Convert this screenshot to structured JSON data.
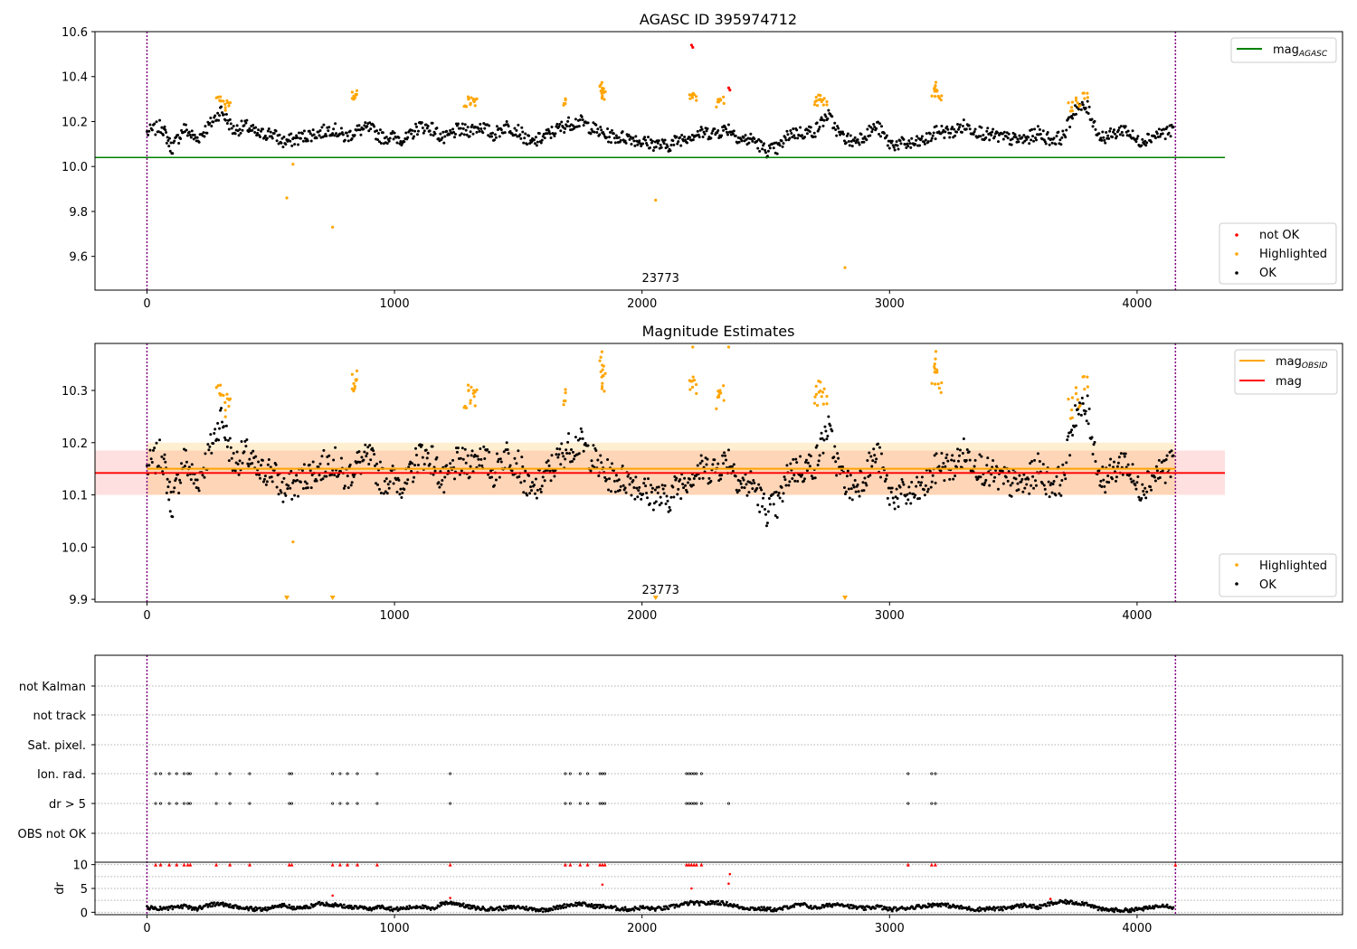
{
  "chart_data": [
    {
      "panel": "top",
      "type": "scatter",
      "title": "AGASC ID 395974712",
      "xlim": [
        -210,
        4830
      ],
      "ylim": [
        9.45,
        10.6
      ],
      "xticks": [
        0,
        1000,
        2000,
        3000,
        4000
      ],
      "yticks": [
        9.6,
        9.8,
        10.0,
        10.2,
        10.4,
        10.6
      ],
      "ytick_labels": [
        "9.6",
        "9.8",
        "10.0",
        "10.2",
        "10.4",
        "10.6"
      ],
      "obsid_label": "23773",
      "obsid_label_x": 2075,
      "vlines": [
        0,
        4155
      ],
      "hline": {
        "name_main": "mag",
        "name_sub": "AGASC",
        "y": 10.04,
        "x_range": [
          -210,
          4355
        ],
        "color": "#008000"
      },
      "legend_upper": [
        {
          "label_main": "mag",
          "label_sub": "AGASC",
          "color": "#008000"
        }
      ],
      "legend_lower": [
        {
          "label": "not OK",
          "color": "#ff0000"
        },
        {
          "label": "Highlighted",
          "color": "#ffa500"
        },
        {
          "label": "OK",
          "color": "#000000"
        }
      ],
      "ok_series": {
        "name": "OK",
        "color": "#000000",
        "x": [
          0,
          60,
          100,
          150,
          200,
          250,
          300,
          350,
          400,
          450,
          500,
          550,
          600,
          650,
          700,
          750,
          800,
          850,
          900,
          950,
          1000,
          1050,
          1100,
          1150,
          1200,
          1250,
          1300,
          1350,
          1400,
          1450,
          1500,
          1550,
          1600,
          1650,
          1700,
          1750,
          1800,
          1850,
          1900,
          1950,
          2000,
          2050,
          2100,
          2150,
          2200,
          2250,
          2300,
          2350,
          2400,
          2450,
          2500,
          2550,
          2600,
          2650,
          2700,
          2750,
          2800,
          2850,
          2900,
          2950,
          3000,
          3050,
          3100,
          3150,
          3200,
          3250,
          3300,
          3350,
          3400,
          3450,
          3500,
          3550,
          3600,
          3650,
          3700,
          3750,
          3800,
          3850,
          3900,
          3950,
          4000,
          4050,
          4100,
          4150
        ],
        "y": [
          10.15,
          10.18,
          10.08,
          10.17,
          10.12,
          10.18,
          10.25,
          10.16,
          10.18,
          10.14,
          10.15,
          10.11,
          10.12,
          10.14,
          10.15,
          10.17,
          10.13,
          10.16,
          10.17,
          10.13,
          10.13,
          10.12,
          10.18,
          10.17,
          10.12,
          10.16,
          10.16,
          10.18,
          10.14,
          10.18,
          10.16,
          10.1,
          10.13,
          10.16,
          10.19,
          10.2,
          10.17,
          10.14,
          10.13,
          10.13,
          10.11,
          10.1,
          10.09,
          10.12,
          10.14,
          10.15,
          10.15,
          10.17,
          10.12,
          10.12,
          10.07,
          10.08,
          10.15,
          10.15,
          10.16,
          10.23,
          10.14,
          10.11,
          10.14,
          10.18,
          10.1,
          10.1,
          10.1,
          10.12,
          10.16,
          10.15,
          10.18,
          10.16,
          10.14,
          10.13,
          10.12,
          10.12,
          10.15,
          10.12,
          10.13,
          10.26,
          10.26,
          10.13,
          10.14,
          10.17,
          10.11,
          10.13,
          10.15,
          10.16
        ]
      },
      "highlighted_series": {
        "name": "Highlighted",
        "color": "#ffa500",
        "x": [
          290,
          310,
          330,
          840,
          845,
          1290,
          1310,
          1330,
          1680,
          1830,
          1840,
          1850,
          2200,
          2210,
          2310,
          2320,
          2700,
          2720,
          2740,
          3180,
          3190,
          3200,
          3730,
          3760,
          3790,
          565,
          590,
          750,
          2055,
          2820
        ],
        "y": [
          10.3,
          10.27,
          10.28,
          10.32,
          10.33,
          10.29,
          10.3,
          10.28,
          10.29,
          10.35,
          10.31,
          10.33,
          10.32,
          10.31,
          10.28,
          10.3,
          10.29,
          10.31,
          10.28,
          10.33,
          10.35,
          10.32,
          10.27,
          10.29,
          10.32,
          9.86,
          10.01,
          9.73,
          9.85,
          9.55
        ]
      },
      "not_ok_series": {
        "name": "not OK",
        "color": "#ff0000",
        "x": [
          2200,
          2205,
          2350,
          2355
        ],
        "y": [
          10.54,
          10.53,
          10.35,
          10.34
        ]
      }
    },
    {
      "panel": "middle",
      "type": "scatter",
      "title": "Magnitude Estimates",
      "xlim": [
        -210,
        4830
      ],
      "ylim": [
        9.895,
        10.39
      ],
      "xticks": [
        0,
        1000,
        2000,
        3000,
        4000
      ],
      "yticks": [
        9.9,
        10.0,
        10.1,
        10.2,
        10.3
      ],
      "ytick_labels": [
        "9.9",
        "10.0",
        "10.1",
        "10.2",
        "10.3"
      ],
      "obsid_label": "23773",
      "obsid_label_x": 2075,
      "vlines": [
        0,
        4155
      ],
      "mag_obsid": {
        "name_main": "mag",
        "name_sub": "OBSID",
        "y": 10.15,
        "band": [
          10.1,
          10.2
        ],
        "x_range": [
          0,
          4155
        ],
        "color": "#ffa500"
      },
      "mag": {
        "name": "mag",
        "y": 10.142,
        "band": [
          10.1,
          10.185
        ],
        "x_range": [
          -210,
          4355
        ],
        "color": "#ff0000"
      },
      "legend_upper": [
        {
          "label_main": "mag",
          "label_sub": "OBSID",
          "color": "#ffa500"
        },
        {
          "label_main": "mag",
          "label_sub": "",
          "color": "#ff0000"
        }
      ],
      "legend_lower": [
        {
          "label": "Highlighted",
          "color": "#ffa500"
        },
        {
          "label": "OK",
          "color": "#000000"
        }
      ],
      "ok_series": {
        "name": "OK",
        "color": "#000000",
        "x": [
          0,
          60,
          100,
          150,
          200,
          250,
          300,
          350,
          400,
          450,
          500,
          550,
          600,
          650,
          700,
          750,
          800,
          850,
          900,
          950,
          1000,
          1050,
          1100,
          1150,
          1200,
          1250,
          1300,
          1350,
          1400,
          1450,
          1500,
          1550,
          1600,
          1650,
          1700,
          1750,
          1800,
          1850,
          1900,
          1950,
          2000,
          2050,
          2100,
          2150,
          2200,
          2250,
          2300,
          2350,
          2400,
          2450,
          2500,
          2550,
          2600,
          2650,
          2700,
          2750,
          2800,
          2850,
          2900,
          2950,
          3000,
          3050,
          3100,
          3150,
          3200,
          3250,
          3300,
          3350,
          3400,
          3450,
          3500,
          3550,
          3600,
          3650,
          3700,
          3750,
          3800,
          3850,
          3900,
          3950,
          4000,
          4050,
          4100,
          4150
        ],
        "y": [
          10.15,
          10.18,
          10.08,
          10.17,
          10.12,
          10.18,
          10.25,
          10.16,
          10.18,
          10.14,
          10.15,
          10.11,
          10.12,
          10.14,
          10.15,
          10.17,
          10.13,
          10.16,
          10.17,
          10.13,
          10.13,
          10.12,
          10.18,
          10.17,
          10.12,
          10.16,
          10.16,
          10.18,
          10.14,
          10.18,
          10.16,
          10.1,
          10.13,
          10.16,
          10.19,
          10.2,
          10.17,
          10.14,
          10.13,
          10.13,
          10.11,
          10.1,
          10.09,
          10.12,
          10.14,
          10.15,
          10.15,
          10.17,
          10.12,
          10.12,
          10.07,
          10.08,
          10.15,
          10.15,
          10.16,
          10.23,
          10.14,
          10.11,
          10.14,
          10.18,
          10.1,
          10.1,
          10.1,
          10.12,
          10.16,
          10.15,
          10.18,
          10.16,
          10.14,
          10.13,
          10.12,
          10.12,
          10.15,
          10.12,
          10.13,
          10.26,
          10.26,
          10.13,
          10.14,
          10.17,
          10.11,
          10.13,
          10.15,
          10.16
        ]
      },
      "highlighted_series": {
        "name": "Highlighted",
        "color": "#ffa500",
        "x": [
          290,
          310,
          330,
          840,
          845,
          1290,
          1310,
          1330,
          1680,
          1830,
          1840,
          1850,
          2200,
          2210,
          2310,
          2320,
          2700,
          2720,
          2740,
          3180,
          3190,
          3200,
          3730,
          3760,
          3790,
          590
        ],
        "y": [
          10.3,
          10.27,
          10.28,
          10.32,
          10.33,
          10.29,
          10.3,
          10.28,
          10.29,
          10.35,
          10.31,
          10.33,
          10.32,
          10.31,
          10.28,
          10.3,
          10.29,
          10.31,
          10.28,
          10.33,
          10.35,
          10.32,
          10.27,
          10.29,
          10.32,
          10.01
        ]
      },
      "below_range_markers": {
        "color": "#ffa500",
        "x": [
          565,
          750,
          2055,
          2820
        ]
      },
      "above_range_markers": {
        "color": "#ffa500",
        "x": [
          2205,
          2350
        ]
      }
    },
    {
      "panel": "bottom",
      "type": "scatter",
      "xlim": [
        -210,
        4830
      ],
      "xticks": [
        0,
        1000,
        2000,
        3000,
        4000
      ],
      "vlines": [
        0,
        4155
      ],
      "flag_rows": [
        "not Kalman",
        "not track",
        "Sat. pixel.",
        "Ion. rad.",
        "dr > 5",
        "OBS not OK"
      ],
      "flag_points": {
        "Ion. rad.": [
          35,
          55,
          90,
          120,
          150,
          165,
          175,
          280,
          335,
          415,
          575,
          585,
          750,
          780,
          810,
          850,
          930,
          1225,
          1690,
          1710,
          1750,
          1780,
          1830,
          1840,
          1850,
          2180,
          2190,
          2200,
          2210,
          2220,
          2240,
          3075,
          3170,
          3185
        ],
        "dr > 5": [
          35,
          55,
          90,
          120,
          150,
          165,
          175,
          280,
          335,
          415,
          575,
          585,
          750,
          780,
          810,
          850,
          930,
          1225,
          1690,
          1710,
          1750,
          1780,
          1830,
          1840,
          1850,
          2180,
          2190,
          2200,
          2210,
          2220,
          2240,
          2350,
          3075,
          3170,
          3185
        ]
      },
      "dr_axis": {
        "ylabel": "dr",
        "ylim": [
          -0.5,
          10.5
        ],
        "yticks": [
          0,
          5,
          10
        ],
        "ytick_labels": [
          "0",
          "5",
          "10"
        ],
        "clip_y": 10
      },
      "dr_series": {
        "color": "#000000",
        "x": [
          0,
          50,
          100,
          150,
          200,
          250,
          300,
          350,
          400,
          450,
          500,
          550,
          600,
          650,
          700,
          750,
          800,
          850,
          900,
          950,
          1000,
          1050,
          1100,
          1150,
          1200,
          1250,
          1300,
          1350,
          1400,
          1450,
          1500,
          1550,
          1600,
          1650,
          1700,
          1750,
          1800,
          1850,
          1900,
          1950,
          2000,
          2050,
          2100,
          2150,
          2200,
          2250,
          2300,
          2350,
          2400,
          2450,
          2500,
          2550,
          2600,
          2650,
          2700,
          2750,
          2800,
          2850,
          2900,
          2950,
          3000,
          3050,
          3100,
          3150,
          3200,
          3250,
          3300,
          3350,
          3400,
          3450,
          3500,
          3550,
          3600,
          3650,
          3700,
          3750,
          3800,
          3850,
          3900,
          3950,
          4000,
          4050,
          4100,
          4150
        ],
        "y": [
          1.0,
          0.8,
          0.9,
          1.2,
          0.7,
          1.6,
          1.8,
          1.1,
          0.8,
          0.6,
          0.9,
          1.5,
          0.8,
          1.1,
          1.9,
          1.6,
          1.2,
          1.0,
          0.7,
          1.2,
          0.6,
          0.9,
          1.3,
          0.6,
          2.0,
          1.9,
          1.1,
          0.8,
          0.7,
          0.9,
          1.1,
          0.7,
          0.5,
          0.9,
          1.5,
          1.8,
          1.3,
          1.2,
          0.8,
          0.6,
          1.0,
          0.7,
          0.9,
          1.5,
          2.0,
          1.8,
          2.1,
          1.7,
          1.0,
          0.8,
          0.7,
          0.5,
          1.3,
          1.6,
          0.9,
          1.4,
          1.8,
          1.1,
          0.8,
          1.2,
          0.6,
          0.8,
          1.1,
          1.4,
          1.7,
          1.3,
          0.9,
          0.6,
          0.8,
          0.7,
          1.2,
          1.5,
          1.0,
          1.8,
          2.2,
          2.0,
          1.8,
          0.6,
          0.5,
          0.4,
          0.6,
          0.9,
          1.6,
          1.0
        ]
      },
      "dr_flagged": {
        "color": "#ff0000",
        "x": [
          35,
          55,
          90,
          120,
          150,
          165,
          175,
          280,
          335,
          415,
          575,
          585,
          750,
          780,
          810,
          850,
          930,
          1225,
          1690,
          1710,
          1750,
          1780,
          1830,
          1840,
          1850,
          2180,
          2190,
          2200,
          2210,
          2220,
          2240,
          3075,
          3170,
          3185,
          4155,
          750,
          1225,
          1840,
          2200,
          2350,
          2355,
          3650
        ],
        "y": [
          10,
          10,
          10,
          10,
          10,
          10,
          10,
          10,
          10,
          10,
          10,
          10,
          10,
          10,
          10,
          10,
          10,
          10,
          10,
          10,
          10,
          10,
          10,
          10,
          10,
          10,
          10,
          10,
          10,
          10,
          10,
          10,
          10,
          10,
          10,
          3.5,
          3.0,
          5.8,
          5.0,
          6.0,
          8.0,
          2.8
        ]
      }
    }
  ]
}
